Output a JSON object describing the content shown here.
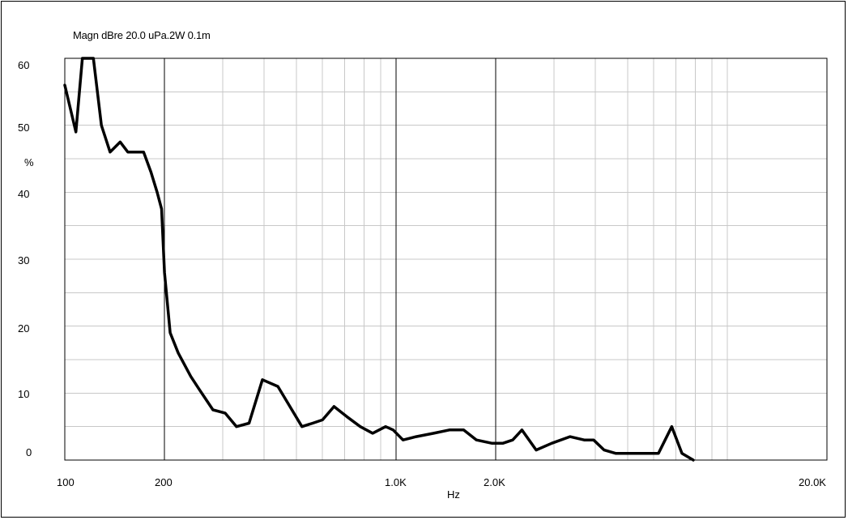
{
  "chart_data": {
    "type": "line",
    "title": "Magn dBre 20.0 uPa.2W 0.1m",
    "xlabel": "Hz",
    "ylabel": "%",
    "xscale": "log",
    "xlim": [
      100,
      20000
    ],
    "ylim": [
      0,
      60
    ],
    "grid": true,
    "y_ticks": [
      "60",
      "50",
      "40",
      "30",
      "20",
      "10",
      "0"
    ],
    "x_ticks": [
      "100",
      "200",
      "1.0K",
      "2.0K",
      "20.0K"
    ],
    "series": [
      {
        "color": "#000000",
        "x": [
          100,
          108,
          113,
          122,
          129,
          137,
          147,
          155,
          173,
          182,
          190,
          196,
          200,
          208,
          220,
          240,
          255,
          280,
          305,
          330,
          360,
          395,
          440,
          520,
          560,
          600,
          650,
          710,
          780,
          850,
          930,
          980,
          1050,
          1150,
          1300,
          1450,
          1600,
          1750,
          1950,
          2100,
          2250,
          2400,
          2650,
          2950,
          3350,
          3700,
          3950,
          4250,
          4600,
          5200,
          6200,
          6800,
          7300,
          7900
        ],
        "y": [
          56,
          49,
          60,
          60,
          50,
          46,
          47.5,
          46,
          46,
          43,
          40,
          37.5,
          28,
          19,
          16,
          12.5,
          10.5,
          7.5,
          7,
          5,
          5.5,
          12,
          11,
          5,
          5.5,
          6,
          8,
          6.5,
          5,
          4,
          5,
          4.5,
          3,
          3.5,
          4,
          4.5,
          4.5,
          3,
          2.5,
          2.5,
          3,
          4.5,
          1.5,
          2.5,
          3.5,
          3,
          3,
          1.5,
          1,
          1,
          1,
          5,
          1,
          0
        ]
      }
    ]
  }
}
